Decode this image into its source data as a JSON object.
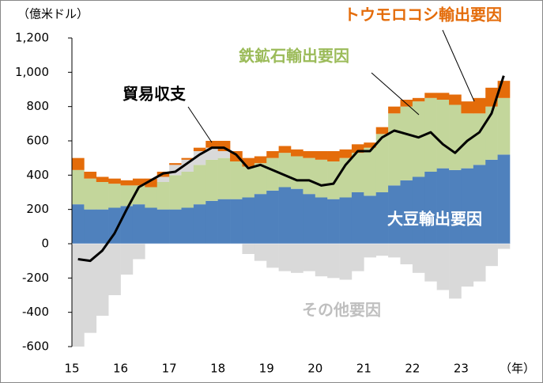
{
  "chart_data": {
    "type": "bar",
    "stacked": true,
    "unit_label": "（億米ドル）",
    "xlabel": "（年）",
    "xlim": [
      15,
      24
    ],
    "xticks": [
      15,
      16,
      17,
      18,
      19,
      20,
      21,
      22,
      23
    ],
    "ylim": [
      -600,
      1200
    ],
    "yticks": [
      {
        "value": 1200,
        "label": "1,200"
      },
      {
        "value": 1000,
        "label": "1,000"
      },
      800,
      600,
      400,
      200,
      0,
      -200,
      -400,
      -600
    ],
    "x": [
      15,
      15.25,
      15.5,
      15.75,
      16,
      16.25,
      16.5,
      16.75,
      17,
      17.25,
      17.5,
      17.75,
      18,
      18.25,
      18.5,
      18.75,
      19,
      19.25,
      19.5,
      19.75,
      20,
      20.25,
      20.5,
      20.75,
      21,
      21.25,
      21.5,
      21.75,
      22,
      22.25,
      22.5,
      22.75,
      23,
      23.25,
      23.5,
      23.75
    ],
    "series": [
      {
        "name": "大豆輸出要因",
        "color": "#4f81bd",
        "values": [
          230,
          200,
          200,
          210,
          220,
          230,
          210,
          200,
          200,
          210,
          230,
          250,
          260,
          260,
          270,
          290,
          310,
          330,
          320,
          290,
          270,
          260,
          270,
          300,
          280,
          300,
          340,
          370,
          390,
          420,
          440,
          430,
          440,
          460,
          490,
          520
        ]
      },
      {
        "name": "鉄鉱石輸出要因",
        "color": "#c3d69b",
        "values": [
          200,
          180,
          160,
          140,
          120,
          110,
          120,
          160,
          200,
          210,
          230,
          240,
          240,
          220,
          180,
          180,
          190,
          200,
          190,
          210,
          220,
          220,
          230,
          230,
          280,
          340,
          420,
          430,
          440,
          430,
          400,
          380,
          320,
          300,
          310,
          330
        ]
      },
      {
        "name": "その他要因",
        "color": "#d9d9d9",
        "values": [
          -600,
          -520,
          -420,
          -300,
          -180,
          -90,
          0,
          30,
          60,
          70,
          80,
          70,
          40,
          0,
          -60,
          -100,
          -140,
          -160,
          -170,
          -160,
          -190,
          -200,
          -210,
          -160,
          -80,
          -70,
          -80,
          -120,
          -170,
          -220,
          -270,
          -320,
          -250,
          -220,
          -130,
          -30
        ]
      },
      {
        "name": "トウモロコシ輸出要因",
        "color": "#e46c0a",
        "values": [
          70,
          40,
          30,
          30,
          30,
          40,
          50,
          30,
          10,
          10,
          20,
          40,
          60,
          60,
          50,
          40,
          40,
          40,
          40,
          40,
          50,
          60,
          50,
          50,
          30,
          40,
          40,
          40,
          20,
          30,
          40,
          60,
          70,
          90,
          110,
          100
        ]
      },
      {
        "name": "貿易収支",
        "type": "line",
        "color": "#000000",
        "values": [
          -90,
          -100,
          -40,
          60,
          200,
          330,
          370,
          410,
          420,
          470,
          520,
          560,
          560,
          520,
          440,
          460,
          430,
          400,
          370,
          370,
          340,
          350,
          460,
          540,
          540,
          620,
          660,
          640,
          620,
          650,
          580,
          530,
          600,
          650,
          760,
          980
        ]
      }
    ]
  }
}
